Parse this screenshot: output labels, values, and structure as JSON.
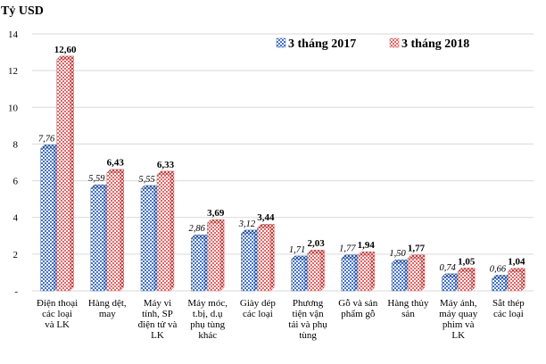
{
  "chart_data": {
    "type": "bar",
    "ylabel": "Tỷ USD",
    "ylim": [
      0,
      14
    ],
    "yticks": [
      "-",
      "2",
      "4",
      "6",
      "8",
      "10",
      "12",
      "14"
    ],
    "grid": true,
    "legend_position": "top-right",
    "categories": [
      [
        "Điện thoại",
        "các loại",
        "và LK"
      ],
      [
        "Hàng dệt,",
        "may"
      ],
      [
        "Máy vi",
        "tính, SP",
        "điện tử và",
        "LK"
      ],
      [
        "Máy móc,",
        "t.bị, d.ụ",
        "phụ tùng",
        "khác"
      ],
      [
        "Giày dép",
        "các loại"
      ],
      [
        "Phương",
        "tiện vận",
        "tải và phụ",
        "tùng"
      ],
      [
        "Gỗ và sản",
        "phẩm gỗ"
      ],
      [
        "Hàng thủy",
        "sản"
      ],
      [
        "Máy ảnh,",
        "máy quay",
        "phim và",
        "LK"
      ],
      [
        "Sắt thép",
        "các loại"
      ]
    ],
    "series": [
      {
        "name": "3 tháng 2017",
        "color": "#4472C4",
        "values": [
          7.76,
          5.59,
          5.55,
          2.86,
          3.12,
          1.71,
          1.77,
          1.5,
          0.74,
          0.66
        ],
        "labels": [
          "7,76",
          "5,59",
          "5,55",
          "2,86",
          "3,12",
          "1,71",
          "1,77",
          "1,50",
          "0,74",
          "0,66"
        ]
      },
      {
        "name": "3 tháng 2018",
        "color": "#E06666",
        "values": [
          12.6,
          6.43,
          6.33,
          3.69,
          3.44,
          2.03,
          1.94,
          1.77,
          1.05,
          1.04
        ],
        "labels": [
          "12,60",
          "6,43",
          "6,33",
          "3,69",
          "3,44",
          "2,03",
          "1,94",
          "1,77",
          "1,05",
          "1,04"
        ]
      }
    ]
  }
}
